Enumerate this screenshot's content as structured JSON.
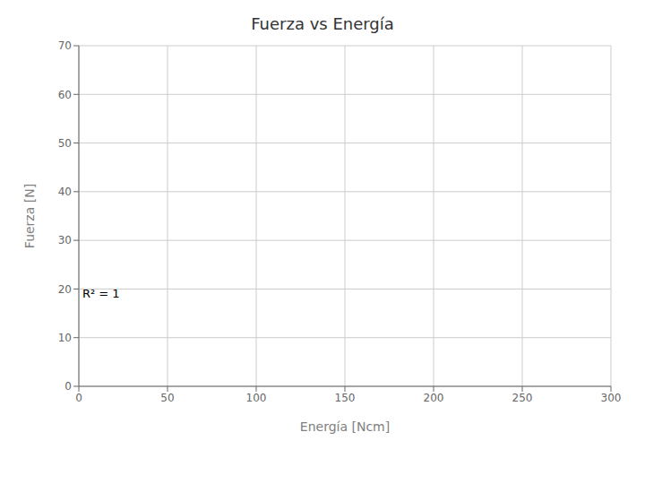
{
  "chart_data": {
    "type": "scatter",
    "title": "Fuerza vs Energía",
    "x_label": "Energía [Ncm]",
    "y_label": "Fuerza [N]",
    "x": [],
    "values": [],
    "xlim": [
      0,
      300
    ],
    "ylim": [
      0,
      70
    ],
    "xticks": [
      0,
      50,
      100,
      150,
      200,
      250,
      300
    ],
    "yticks": [
      0,
      10,
      20,
      30,
      40,
      50,
      60,
      70
    ],
    "grid": true,
    "annotations": [
      {
        "text": "R² = 1",
        "x": 1,
        "y": 19
      }
    ]
  }
}
